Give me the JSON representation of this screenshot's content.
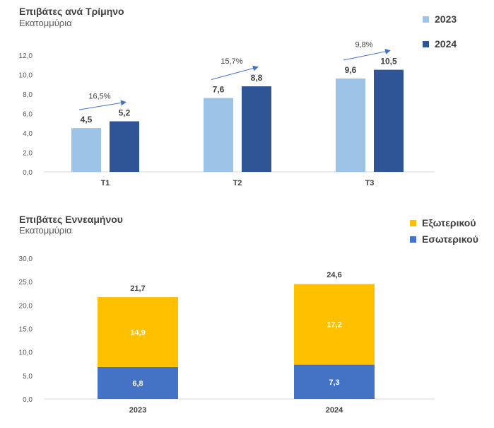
{
  "chart_data": [
    {
      "type": "bar",
      "title": "Επιβάτες ανά Τρίμηνο",
      "subtitle": "Εκατομμύρια",
      "categories": [
        "T1",
        "T2",
        "T3"
      ],
      "series": [
        {
          "name": "2023",
          "values": [
            4.5,
            7.6,
            9.6
          ],
          "labels": [
            "4,5",
            "7,6",
            "9,6"
          ],
          "color": "#9dc3e6"
        },
        {
          "name": "2024",
          "values": [
            5.2,
            8.8,
            10.5
          ],
          "labels": [
            "5,2",
            "8,8",
            "10,5"
          ],
          "color": "#2f5597"
        }
      ],
      "growth_annotations": [
        "16,5%",
        "15,7%",
        "9,8%"
      ],
      "arrow_color": "#4472c4",
      "ylim": [
        0,
        12
      ],
      "yticks": [
        0,
        2,
        4,
        6,
        8,
        10,
        12
      ],
      "ytick_labels": [
        "0,0",
        "2,0",
        "4,0",
        "6,0",
        "8,0",
        "10,0",
        "12,0"
      ],
      "grid": false,
      "legend_position": "top-right"
    },
    {
      "type": "bar",
      "stacked": true,
      "title": "Επιβάτες Εννεαμήνου",
      "subtitle": "Εκατομμύρια",
      "categories": [
        "2023",
        "2024"
      ],
      "series": [
        {
          "name": "Εσωτερικού",
          "values": [
            6.8,
            7.3
          ],
          "labels": [
            "6,8",
            "7,3"
          ],
          "color": "#4472c4"
        },
        {
          "name": "Εξωτερικού",
          "values": [
            14.9,
            17.2
          ],
          "labels": [
            "14,9",
            "17,2"
          ],
          "color": "#ffc000"
        }
      ],
      "totals": [
        21.7,
        24.6
      ],
      "total_labels": [
        "21,7",
        "24,6"
      ],
      "ylim": [
        0,
        30
      ],
      "yticks": [
        0,
        5,
        10,
        15,
        20,
        25,
        30
      ],
      "ytick_labels": [
        "0,0",
        "5,0",
        "10,0",
        "15,0",
        "20,0",
        "25,0",
        "30,0"
      ],
      "grid": false,
      "legend_position": "top-right",
      "legend_order": [
        "Εξωτερικού",
        "Εσωτερικού"
      ]
    }
  ]
}
